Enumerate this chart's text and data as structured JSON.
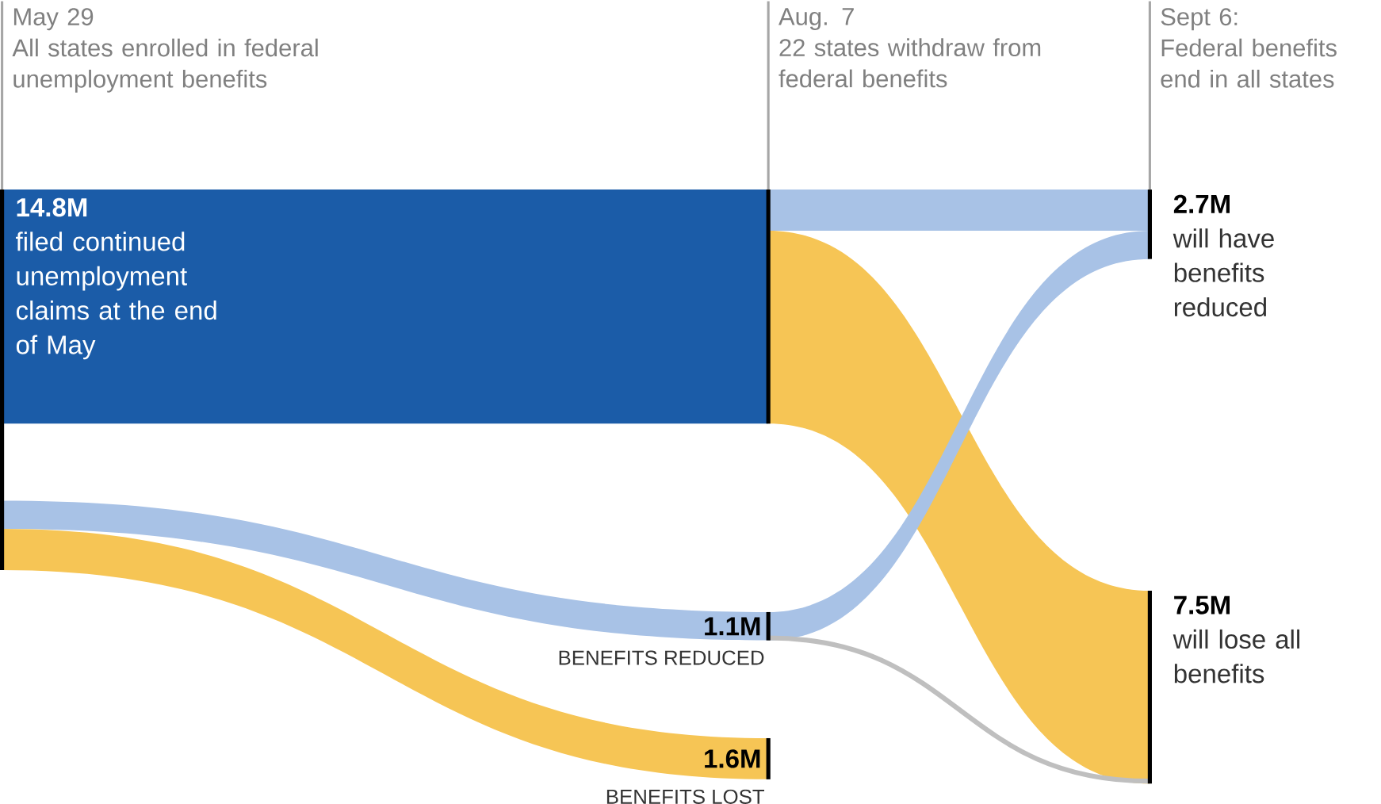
{
  "chart_data": {
    "type": "other",
    "annotations": [
      "May 29",
      "All states enrolled in federal unemployment benefits",
      "Aug. 7",
      "22 states withdraw from federal benefits",
      "Sept 6:",
      "Federal benefits end in all states"
    ],
    "categories": [
      "filed continued unemployment claims at the end of May",
      "BENEFITS REDUCED",
      "BENEFITS LOST",
      "will have benefits reduced",
      "will lose all benefits"
    ],
    "values": [
      14.8,
      1.1,
      1.6,
      2.7,
      7.5
    ],
    "value_labels": [
      "14.8M",
      "1.1M",
      "1.6M",
      "2.7M",
      "7.5M"
    ],
    "colors": [
      "#1b5ca8",
      "#a8c2e6",
      "#f6c555",
      "#a8c2e6",
      "#f6c555"
    ]
  }
}
